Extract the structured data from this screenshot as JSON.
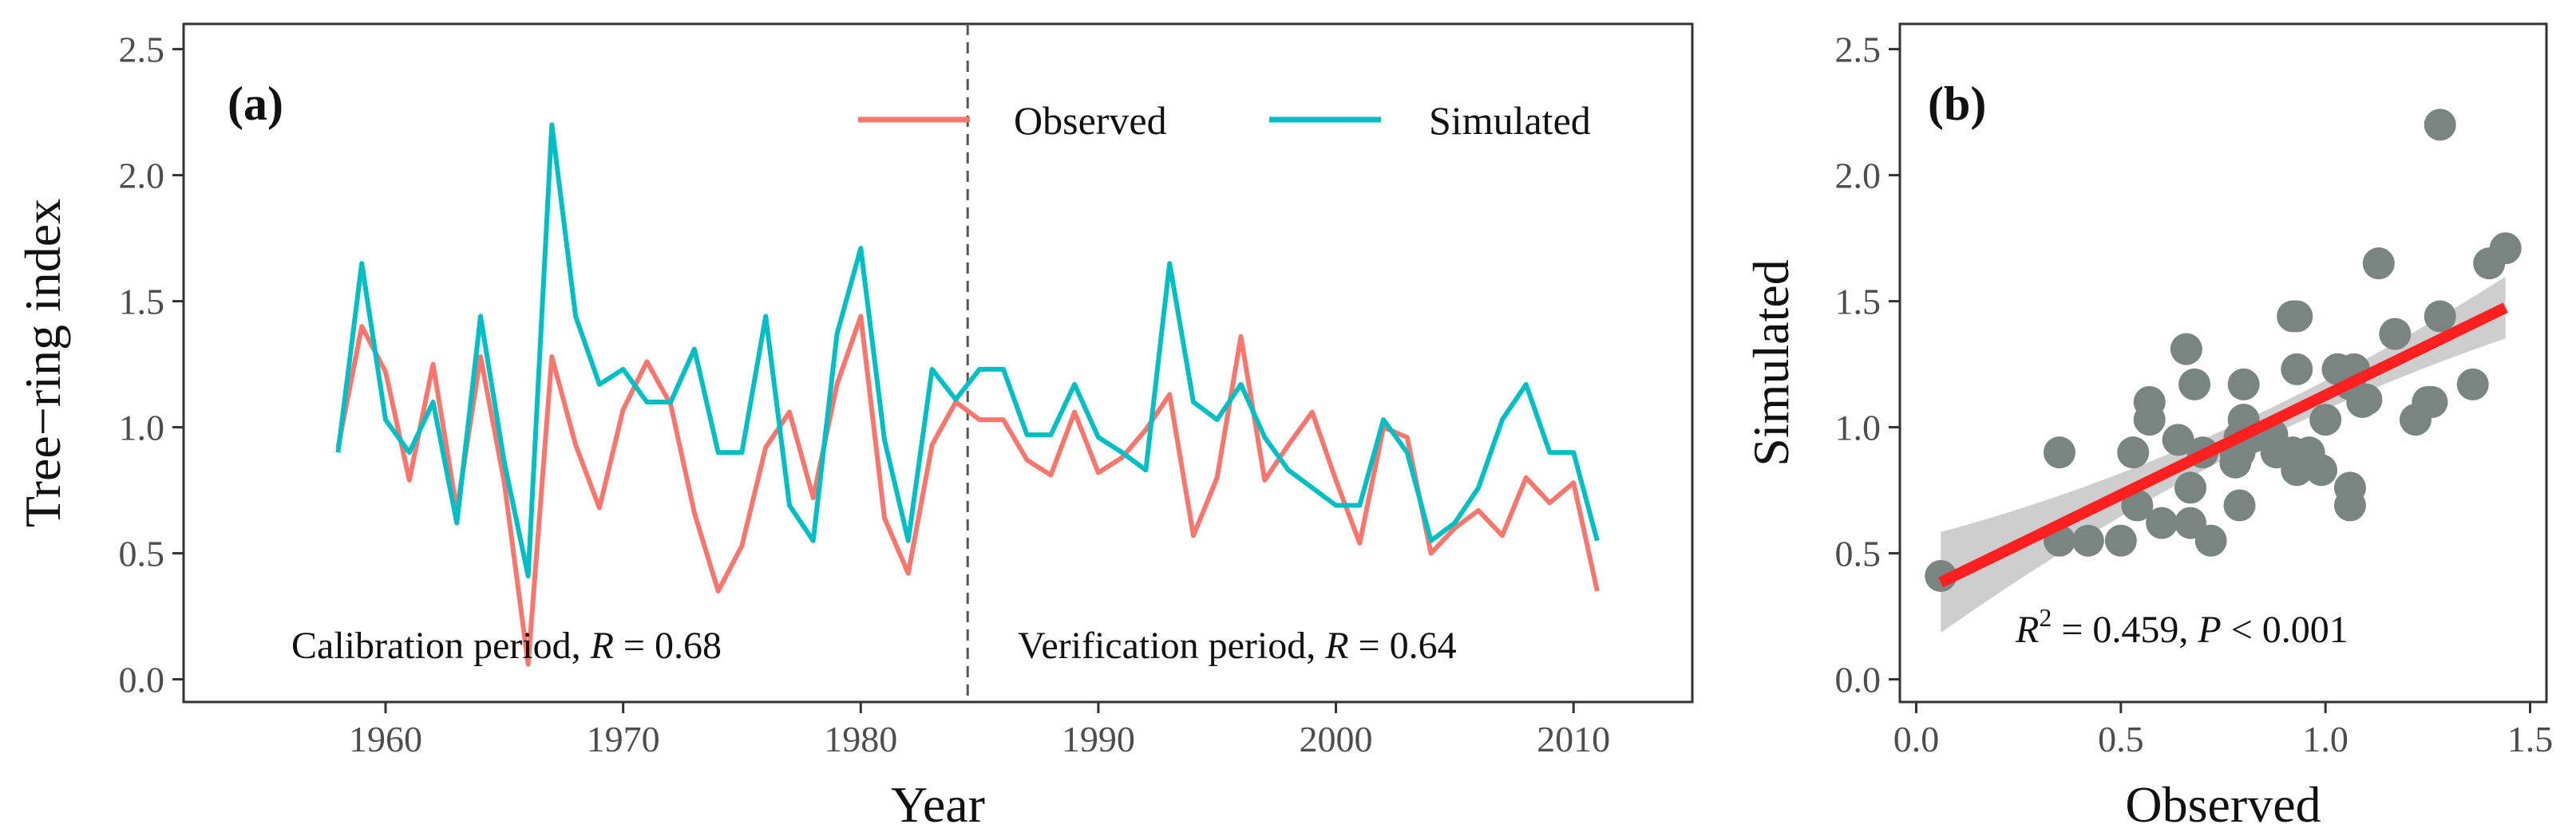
{
  "colors": {
    "observed": "#F8766D",
    "simulated": "#00BFC4",
    "points": "#7a8582",
    "fit": "#ff2020",
    "band": "#bdbdbd"
  },
  "chart_data": [
    {
      "type": "line",
      "panel_label": "(a)",
      "xlabel": "Year",
      "ylabel": "Tree−ring index",
      "xlim": [
        1951.5,
        2015
      ],
      "ylim": [
        -0.09,
        2.6
      ],
      "xticks": [
        1960,
        1970,
        1980,
        1990,
        2000,
        2010
      ],
      "yticks": [
        0.0,
        0.5,
        1.0,
        1.5,
        2.0,
        2.5
      ],
      "ytick_labels": [
        "0.0",
        "0.5",
        "1.0",
        "1.5",
        "2.0",
        "2.5"
      ],
      "legend": {
        "observed": "Observed",
        "simulated": "Simulated",
        "position": "top-right"
      },
      "split_year": 1984.5,
      "calibration_prefix": "Calibration period, ",
      "verification_prefix": "Verification period, ",
      "r_symbol": "R",
      "calibration_r": " = 0.68",
      "verification_r": " = 0.64",
      "x": [
        1958,
        1959,
        1960,
        1961,
        1962,
        1963,
        1964,
        1965,
        1966,
        1967,
        1968,
        1969,
        1970,
        1971,
        1972,
        1973,
        1974,
        1975,
        1976,
        1977,
        1978,
        1979,
        1980,
        1981,
        1982,
        1983,
        1984,
        1985,
        1986,
        1987,
        1988,
        1989,
        1990,
        1991,
        1992,
        1993,
        1994,
        1995,
        1996,
        1997,
        1998,
        1999,
        2000,
        2001,
        2002,
        2003,
        2004,
        2005,
        2006,
        2007,
        2008,
        2009,
        2010,
        2011
      ],
      "series": [
        {
          "name": "Observed",
          "values": [
            0.92,
            1.4,
            1.22,
            0.79,
            1.25,
            0.67,
            1.28,
            0.78,
            0.06,
            1.28,
            0.93,
            0.68,
            1.07,
            1.26,
            1.09,
            0.66,
            0.35,
            0.53,
            0.92,
            1.06,
            0.72,
            1.17,
            1.44,
            0.64,
            0.42,
            0.93,
            1.1,
            1.03,
            1.03,
            0.87,
            0.81,
            1.06,
            0.82,
            0.88,
            0.99,
            1.13,
            0.57,
            0.8,
            1.36,
            0.79,
            0.93,
            1.06,
            0.79,
            0.54,
            1.0,
            0.96,
            0.5,
            0.6,
            0.67,
            0.57,
            0.8,
            0.7,
            0.78,
            0.35
          ]
        },
        {
          "name": "Simulated",
          "values": [
            0.9,
            1.65,
            1.03,
            0.9,
            1.1,
            0.62,
            1.44,
            0.86,
            0.41,
            2.2,
            1.44,
            1.17,
            1.23,
            1.1,
            1.1,
            1.31,
            0.9,
            0.9,
            1.44,
            0.69,
            0.55,
            1.37,
            1.71,
            0.95,
            0.55,
            1.23,
            1.11,
            1.23,
            1.23,
            0.97,
            0.97,
            1.17,
            0.96,
            0.9,
            0.83,
            1.65,
            1.1,
            1.03,
            1.17,
            0.96,
            0.83,
            0.76,
            0.69,
            0.69,
            1.03,
            0.9,
            0.55,
            0.62,
            0.76,
            1.03,
            1.17,
            0.9,
            0.9,
            0.55
          ]
        }
      ]
    },
    {
      "type": "scatter",
      "panel_label": "(b)",
      "xlabel": "Observed",
      "ylabel": "Simulated",
      "xlim": [
        -0.04,
        1.54
      ],
      "ylim": [
        -0.09,
        2.6
      ],
      "xticks": [
        0.0,
        0.5,
        1.0,
        1.5
      ],
      "xtick_labels": [
        "0.0",
        "0.5",
        "1.0",
        "1.5"
      ],
      "yticks": [
        0.0,
        0.5,
        1.0,
        1.5,
        2.0,
        2.5
      ],
      "ytick_labels": [
        "0.0",
        "0.5",
        "1.0",
        "1.5",
        "2.0",
        "2.5"
      ],
      "fit": {
        "intercept": 0.337,
        "slope": 0.79,
        "x_range": [
          0.06,
          1.44
        ],
        "band_halfwidth_ends": 0.2,
        "band_halfwidth_mid": 0.055,
        "x_mean": 0.88
      },
      "annotation_r": "R",
      "annotation_sup": "2",
      "annotation_mid": " = 0.459, ",
      "annotation_p": "P",
      "annotation_end": " < 0.001"
    }
  ]
}
